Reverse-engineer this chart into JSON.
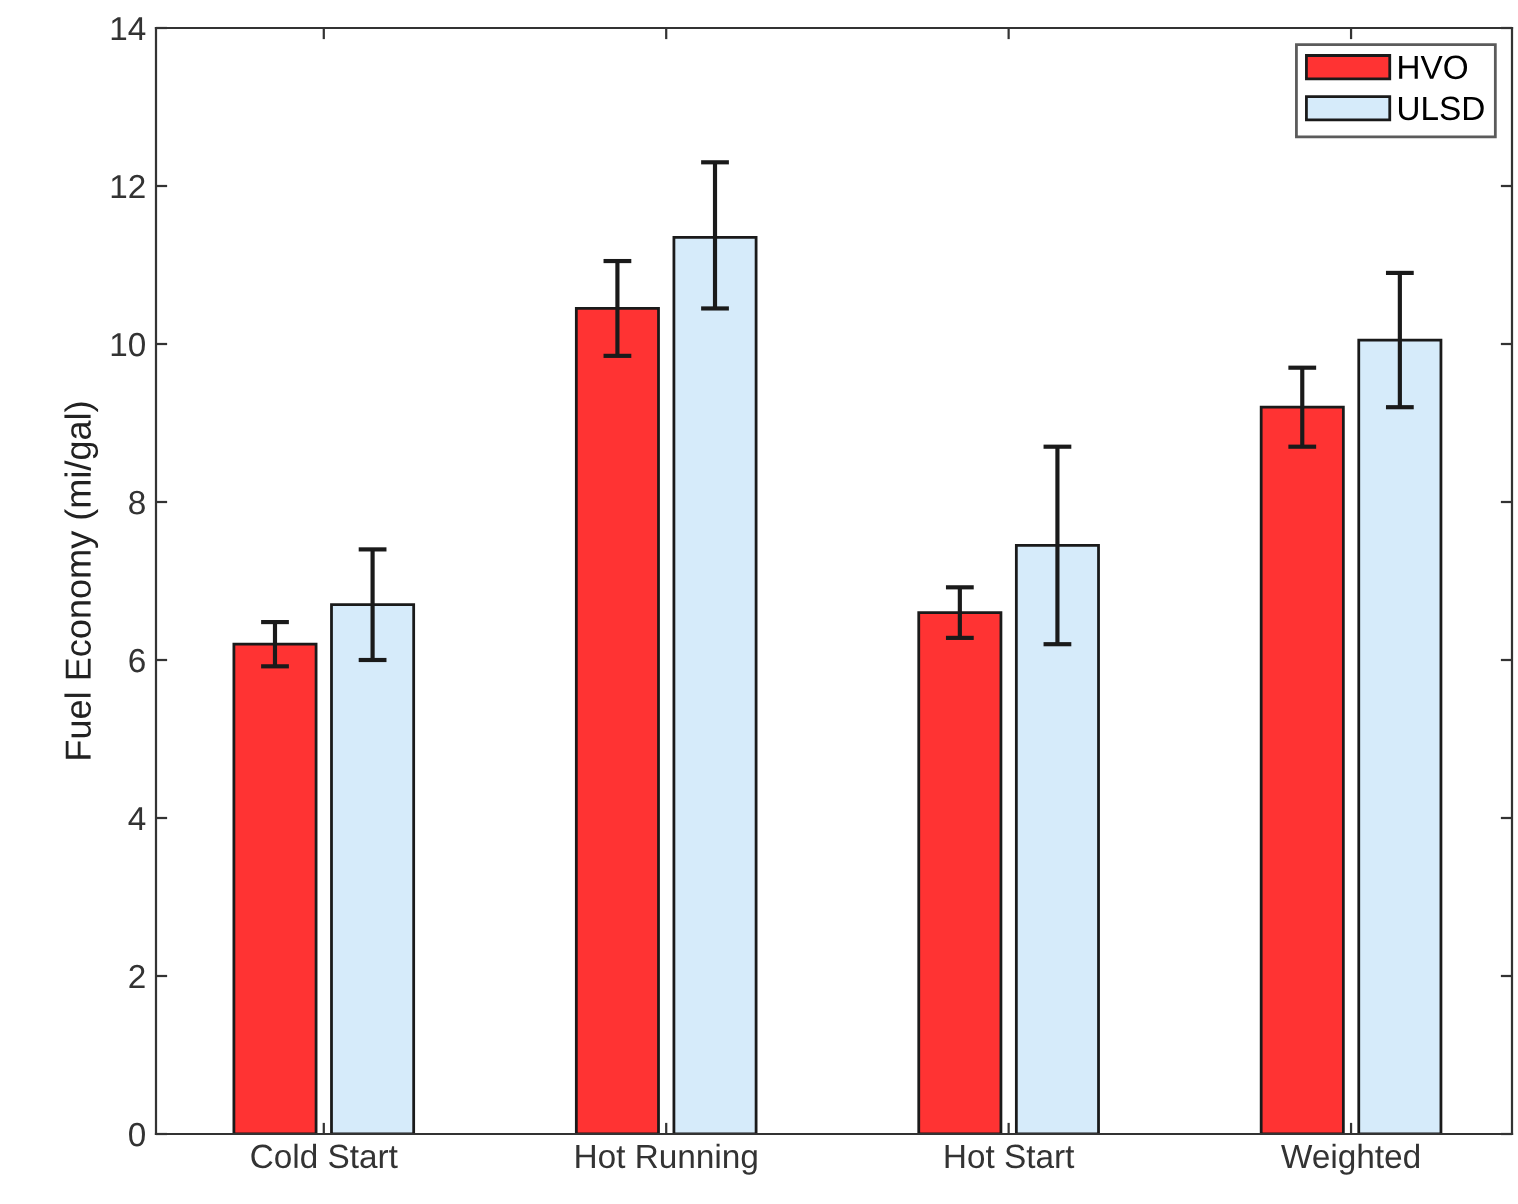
{
  "chart_data": {
    "type": "bar",
    "categories": [
      "Cold Start",
      "Hot Running",
      "Hot Start",
      "Weighted"
    ],
    "ylabel": "Fuel Economy (mi/gal)",
    "series": [
      {
        "name": "HVO",
        "color": "#ff3333",
        "values": [
          6.2,
          10.45,
          6.6,
          9.2
        ],
        "errors": [
          0.28,
          0.6,
          0.32,
          0.5
        ]
      },
      {
        "name": "ULSD",
        "color": "#d6ebfa",
        "values": [
          6.7,
          11.35,
          7.45,
          10.05
        ],
        "errors": [
          [
            6.0,
            7.4
          ],
          [
            10.45,
            12.3
          ],
          [
            6.2,
            8.7
          ],
          [
            9.2,
            10.9
          ]
        ]
      }
    ],
    "ylim": [
      0,
      14
    ],
    "yticks": [
      0,
      2,
      4,
      6,
      8,
      10,
      12,
      14
    ],
    "grid": false,
    "legend": "top right"
  }
}
